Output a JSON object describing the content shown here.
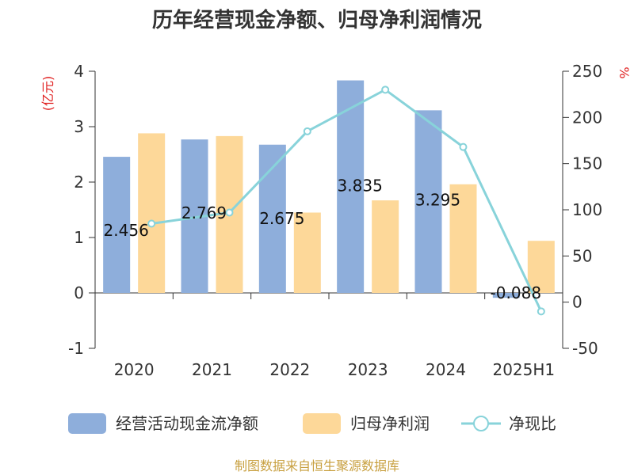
{
  "chart_data": {
    "type": "bar",
    "title": "历年经营现金净额、归母净利润情况",
    "categories": [
      "2020",
      "2021",
      "2022",
      "2023",
      "2024",
      "2025H1"
    ],
    "left_unit": "(亿元)",
    "right_unit": "%",
    "ylim": [
      -1,
      4
    ],
    "yticks": [
      "-1",
      "0",
      "1",
      "2",
      "3",
      "4"
    ],
    "y2lim": [
      -50,
      250
    ],
    "y2ticks": [
      "-50",
      "0",
      "50",
      "100",
      "150",
      "200",
      "250"
    ],
    "series": [
      {
        "name": "经营活动现金流净额",
        "type": "bar",
        "axis": "left",
        "color": "#8eaedb",
        "values": [
          2.456,
          2.769,
          2.675,
          3.835,
          3.295,
          -0.088
        ],
        "labels": [
          "2.456",
          "2.769",
          "2.675",
          "3.835",
          "3.295",
          "-0.088"
        ]
      },
      {
        "name": "归母净利润",
        "type": "bar",
        "axis": "left",
        "color": "#fdd899",
        "values": [
          2.88,
          2.83,
          1.45,
          1.67,
          1.96,
          0.94
        ]
      },
      {
        "name": "净现比",
        "type": "line",
        "axis": "right",
        "color": "#88d3da",
        "values": [
          85,
          97,
          185,
          230,
          168,
          -10
        ]
      }
    ],
    "grid": false,
    "legend_position": "bottom"
  },
  "source_note": "制图数据来自恒生聚源数据库",
  "colors": {
    "axis": "#333333",
    "unit_label": "#e02020",
    "source_note": "#c8a040"
  }
}
